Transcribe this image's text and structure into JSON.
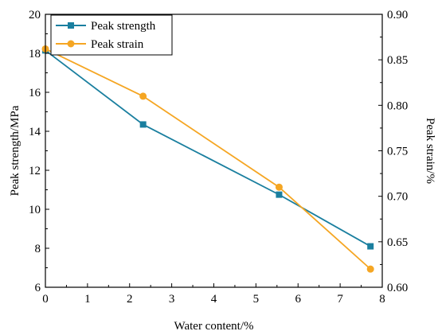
{
  "chart_data": {
    "type": "line",
    "x": [
      0,
      2.32,
      5.55,
      7.72
    ],
    "xlabel": "Water content/%",
    "ylabel": "Peak strength/MPa",
    "y2label": "Peak strain/%",
    "xlim": [
      0,
      8
    ],
    "ylim": [
      6,
      20
    ],
    "y2lim": [
      0.6,
      0.9
    ],
    "xticks": [
      0,
      1,
      2,
      3,
      4,
      5,
      6,
      7,
      8
    ],
    "yticks": [
      6,
      8,
      10,
      12,
      14,
      16,
      18,
      20
    ],
    "y2ticks": [
      "0.60",
      "0.65",
      "0.70",
      "0.75",
      "0.80",
      "0.85",
      "0.90"
    ],
    "grid": false,
    "legend_position": "top-left",
    "series": [
      {
        "name": "Peak strength",
        "axis": "left",
        "marker": "square",
        "color": "#1a7f9f",
        "values": [
          18.15,
          14.35,
          10.75,
          8.1
        ]
      },
      {
        "name": "Peak strain",
        "axis": "right",
        "marker": "circle",
        "color": "#f5a623",
        "values": [
          0.862,
          0.81,
          0.71,
          0.62
        ]
      }
    ]
  }
}
